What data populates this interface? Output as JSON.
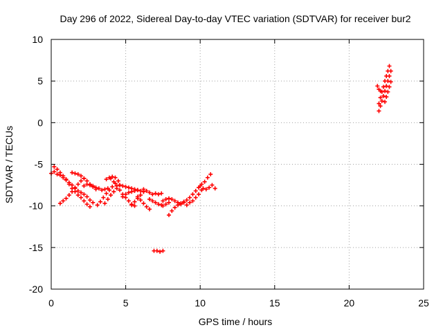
{
  "chart_data": {
    "type": "scatter",
    "title": "Day 296 of 2022, Sidereal Day-to-day VTEC variation (SDTVAR) for receiver bur2",
    "xlabel": "GPS time / hours",
    "ylabel": "SDTVAR / TECUs",
    "xlim": [
      0,
      25
    ],
    "ylim": [
      -20,
      10
    ],
    "xticks": [
      0,
      5,
      10,
      15,
      20,
      25
    ],
    "yticks": [
      -20,
      -15,
      -10,
      -5,
      0,
      5,
      10
    ],
    "grid": true,
    "marker": "plus",
    "series": [
      {
        "name": "SDTVAR",
        "color": "#ff0000",
        "points": [
          [
            0.0,
            -6.1
          ],
          [
            0.2,
            -5.9
          ],
          [
            0.4,
            -6.2
          ],
          [
            0.6,
            -6.3
          ],
          [
            0.8,
            -6.6
          ],
          [
            1.0,
            -6.8
          ],
          [
            1.2,
            -7.2
          ],
          [
            1.4,
            -7.5
          ],
          [
            1.6,
            -7.8
          ],
          [
            1.8,
            -8.2
          ],
          [
            2.0,
            -8.4
          ],
          [
            2.2,
            -8.6
          ],
          [
            2.4,
            -8.9
          ],
          [
            2.6,
            -9.3
          ],
          [
            2.8,
            -9.6
          ],
          [
            0.2,
            -5.3
          ],
          [
            0.4,
            -5.6
          ],
          [
            0.6,
            -6.0
          ],
          [
            0.8,
            -6.4
          ],
          [
            1.0,
            -6.9
          ],
          [
            1.2,
            -7.4
          ],
          [
            1.4,
            -7.9
          ],
          [
            1.6,
            -8.3
          ],
          [
            1.8,
            -8.7
          ],
          [
            2.0,
            -9.0
          ],
          [
            2.2,
            -9.4
          ],
          [
            2.4,
            -9.8
          ],
          [
            2.6,
            -10.1
          ],
          [
            0.6,
            -9.7
          ],
          [
            0.8,
            -9.4
          ],
          [
            1.0,
            -9.1
          ],
          [
            1.2,
            -8.7
          ],
          [
            1.4,
            -8.3
          ],
          [
            1.6,
            -7.9
          ],
          [
            1.8,
            -7.4
          ],
          [
            2.0,
            -7.0
          ],
          [
            2.2,
            -6.7
          ],
          [
            1.4,
            -6.0
          ],
          [
            1.6,
            -6.1
          ],
          [
            1.8,
            -6.2
          ],
          [
            2.0,
            -6.4
          ],
          [
            2.2,
            -6.7
          ],
          [
            2.4,
            -7.0
          ],
          [
            2.6,
            -7.4
          ],
          [
            2.8,
            -7.7
          ],
          [
            3.0,
            -8.0
          ],
          [
            2.2,
            -7.6
          ],
          [
            2.4,
            -7.4
          ],
          [
            2.6,
            -7.5
          ],
          [
            2.8,
            -7.6
          ],
          [
            3.0,
            -7.8
          ],
          [
            3.2,
            -7.9
          ],
          [
            3.4,
            -8.1
          ],
          [
            3.6,
            -8.0
          ],
          [
            3.8,
            -7.9
          ],
          [
            3.1,
            -9.9
          ],
          [
            3.3,
            -9.5
          ],
          [
            3.5,
            -9.0
          ],
          [
            3.7,
            -8.5
          ],
          [
            3.9,
            -8.1
          ],
          [
            4.1,
            -7.7
          ],
          [
            4.3,
            -7.3
          ],
          [
            3.6,
            -9.7
          ],
          [
            3.8,
            -9.2
          ],
          [
            4.0,
            -8.7
          ],
          [
            4.2,
            -8.3
          ],
          [
            4.4,
            -7.9
          ],
          [
            4.6,
            -7.5
          ],
          [
            3.7,
            -6.8
          ],
          [
            3.9,
            -6.6
          ],
          [
            4.1,
            -6.5
          ],
          [
            4.3,
            -6.6
          ],
          [
            4.5,
            -7.0
          ],
          [
            4.0,
            -6.7
          ],
          [
            4.2,
            -7.1
          ],
          [
            4.4,
            -7.6
          ],
          [
            4.6,
            -8.1
          ],
          [
            4.8,
            -8.6
          ],
          [
            5.0,
            -9.0
          ],
          [
            5.2,
            -9.4
          ],
          [
            5.4,
            -9.8
          ],
          [
            5.6,
            -10.0
          ],
          [
            4.6,
            -7.5
          ],
          [
            4.8,
            -7.6
          ],
          [
            5.0,
            -7.7
          ],
          [
            5.2,
            -7.8
          ],
          [
            5.4,
            -7.9
          ],
          [
            5.6,
            -8.0
          ],
          [
            5.8,
            -8.1
          ],
          [
            6.0,
            -8.2
          ],
          [
            6.2,
            -8.3
          ],
          [
            4.8,
            -8.9
          ],
          [
            5.0,
            -8.6
          ],
          [
            5.2,
            -8.4
          ],
          [
            5.4,
            -8.3
          ],
          [
            5.6,
            -8.2
          ],
          [
            5.8,
            -8.1
          ],
          [
            5.4,
            -9.9
          ],
          [
            5.6,
            -9.5
          ],
          [
            5.8,
            -9.1
          ],
          [
            6.0,
            -8.7
          ],
          [
            6.2,
            -8.3
          ],
          [
            5.8,
            -8.9
          ],
          [
            6.0,
            -9.3
          ],
          [
            6.2,
            -9.7
          ],
          [
            6.4,
            -10.1
          ],
          [
            6.6,
            -10.4
          ],
          [
            6.2,
            -8.0
          ],
          [
            6.4,
            -8.2
          ],
          [
            6.6,
            -8.4
          ],
          [
            6.8,
            -8.6
          ],
          [
            7.0,
            -8.5
          ],
          [
            7.2,
            -8.6
          ],
          [
            7.4,
            -8.5
          ],
          [
            6.6,
            -9.2
          ],
          [
            6.8,
            -9.4
          ],
          [
            7.0,
            -9.6
          ],
          [
            7.2,
            -9.8
          ],
          [
            7.4,
            -9.9
          ],
          [
            7.5,
            -9.4
          ],
          [
            7.7,
            -9.2
          ],
          [
            7.9,
            -9.1
          ],
          [
            8.1,
            -9.2
          ],
          [
            8.3,
            -9.4
          ],
          [
            8.5,
            -9.6
          ],
          [
            8.7,
            -9.8
          ],
          [
            7.9,
            -11.1
          ],
          [
            8.1,
            -10.6
          ],
          [
            8.3,
            -10.2
          ],
          [
            8.5,
            -9.9
          ],
          [
            8.7,
            -9.7
          ],
          [
            8.9,
            -9.5
          ],
          [
            7.5,
            -10.0
          ],
          [
            7.7,
            -9.8
          ],
          [
            7.9,
            -9.6
          ],
          [
            8.9,
            -9.6
          ],
          [
            9.1,
            -9.3
          ],
          [
            9.3,
            -9.0
          ],
          [
            9.5,
            -8.6
          ],
          [
            9.7,
            -8.2
          ],
          [
            9.9,
            -7.8
          ],
          [
            10.1,
            -7.4
          ],
          [
            10.3,
            -7.1
          ],
          [
            10.5,
            -6.6
          ],
          [
            10.7,
            -6.2
          ],
          [
            9.1,
            -9.9
          ],
          [
            9.3,
            -9.6
          ],
          [
            9.5,
            -9.4
          ],
          [
            9.7,
            -9.0
          ],
          [
            9.9,
            -8.6
          ],
          [
            10.1,
            -8.1
          ],
          [
            10.0,
            -7.6
          ],
          [
            10.2,
            -7.9
          ],
          [
            10.4,
            -8.0
          ],
          [
            10.6,
            -7.8
          ],
          [
            10.8,
            -7.5
          ],
          [
            11.0,
            -7.9
          ],
          [
            6.9,
            -15.4
          ],
          [
            7.1,
            -15.4
          ],
          [
            7.3,
            -15.5
          ],
          [
            7.5,
            -15.4
          ],
          [
            22.0,
            1.4
          ],
          [
            22.1,
            2.0
          ],
          [
            22.2,
            2.6
          ],
          [
            22.3,
            3.2
          ],
          [
            22.4,
            3.8
          ],
          [
            22.5,
            4.4
          ],
          [
            22.6,
            5.0
          ],
          [
            22.7,
            5.6
          ],
          [
            22.8,
            6.2
          ],
          [
            22.0,
            2.3
          ],
          [
            22.1,
            3.0
          ],
          [
            22.2,
            3.7
          ],
          [
            22.3,
            4.3
          ],
          [
            22.4,
            5.0
          ],
          [
            22.5,
            5.6
          ],
          [
            22.6,
            6.2
          ],
          [
            22.7,
            6.8
          ],
          [
            22.4,
            2.5
          ],
          [
            22.5,
            3.1
          ],
          [
            22.6,
            3.7
          ],
          [
            22.7,
            4.3
          ],
          [
            22.8,
            4.9
          ],
          [
            21.9,
            4.4
          ],
          [
            22.0,
            4.0
          ],
          [
            22.1,
            3.8
          ]
        ]
      }
    ]
  }
}
